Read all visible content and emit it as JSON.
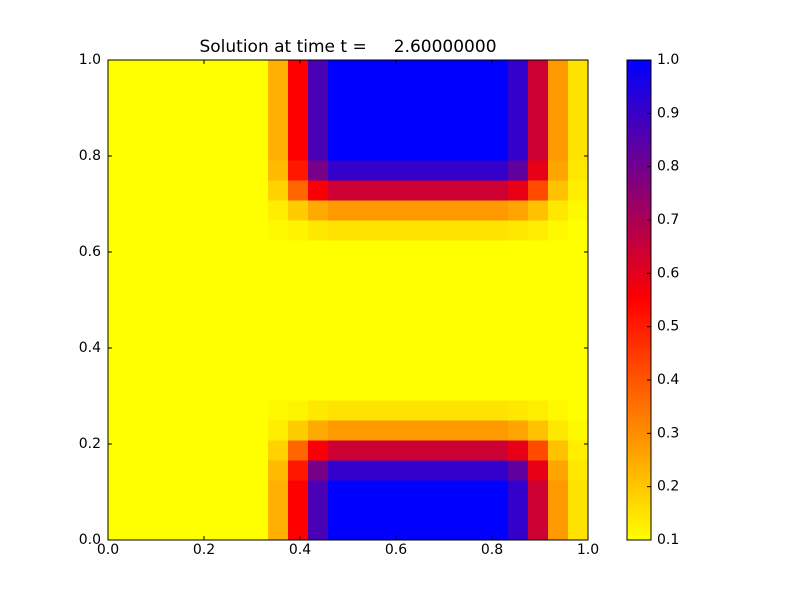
{
  "chart_data": {
    "type": "heatmap",
    "title": "Solution at time t =     2.60000000",
    "xlim": [
      0,
      1
    ],
    "ylim": [
      0,
      1
    ],
    "xticks": [
      {
        "value": 0,
        "label": "0.0"
      },
      0.2,
      0.4,
      0.6,
      0.8,
      {
        "value": 1,
        "label": "1.0"
      }
    ],
    "yticks": [
      {
        "value": 0,
        "label": "0.0"
      },
      0.2,
      0.4,
      0.6,
      0.8,
      {
        "value": 1,
        "label": "1.0"
      }
    ],
    "colormap": [
      "#ffff00",
      "#ff0000",
      "#0000ff"
    ],
    "vlim": [
      0.1,
      1.0
    ],
    "colorbar_ticks": [
      0.1,
      0.2,
      0.3,
      0.4,
      0.5,
      0.6,
      0.7,
      0.8,
      0.9,
      {
        "value": 1,
        "label": "1.0"
      }
    ],
    "z": [
      [
        0.1,
        0.1,
        0.1,
        0.1,
        0.1,
        0.1,
        0.1,
        0.1,
        0.24,
        0.55,
        0.87,
        1,
        1,
        1,
        1,
        1,
        1,
        1,
        1,
        1,
        0.91,
        0.64,
        0.28,
        0.15
      ],
      [
        0.1,
        0.1,
        0.1,
        0.1,
        0.1,
        0.1,
        0.1,
        0.1,
        0.24,
        0.55,
        0.87,
        1,
        1,
        1,
        1,
        1,
        1,
        1,
        1,
        1,
        0.91,
        0.64,
        0.28,
        0.15
      ],
      [
        0.1,
        0.1,
        0.1,
        0.1,
        0.1,
        0.1,
        0.1,
        0.1,
        0.24,
        0.55,
        0.87,
        1,
        1,
        1,
        1,
        1,
        1,
        1,
        1,
        1,
        0.91,
        0.64,
        0.28,
        0.15
      ],
      [
        0.1,
        0.1,
        0.1,
        0.1,
        0.1,
        0.1,
        0.1,
        0.1,
        0.22,
        0.51,
        0.79,
        0.91,
        0.91,
        0.91,
        0.91,
        0.91,
        0.91,
        0.91,
        0.91,
        0.91,
        0.83,
        0.59,
        0.26,
        0.14
      ],
      [
        0.1,
        0.1,
        0.1,
        0.1,
        0.1,
        0.1,
        0.1,
        0.1,
        0.18,
        0.37,
        0.56,
        0.64,
        0.64,
        0.64,
        0.64,
        0.64,
        0.64,
        0.64,
        0.64,
        0.64,
        0.59,
        0.42,
        0.21,
        0.13
      ],
      [
        0.1,
        0.1,
        0.1,
        0.1,
        0.1,
        0.1,
        0.1,
        0.1,
        0.13,
        0.19,
        0.25,
        0.28,
        0.28,
        0.28,
        0.28,
        0.28,
        0.28,
        0.28,
        0.28,
        0.28,
        0.26,
        0.21,
        0.14,
        0.11
      ],
      [
        0.1,
        0.1,
        0.1,
        0.1,
        0.1,
        0.1,
        0.1,
        0.1,
        0.11,
        0.12,
        0.14,
        0.15,
        0.15,
        0.15,
        0.15,
        0.15,
        0.15,
        0.15,
        0.15,
        0.15,
        0.14,
        0.13,
        0.11,
        0.1
      ],
      [
        0.1,
        0.1,
        0.1,
        0.1,
        0.1,
        0.1,
        0.1,
        0.1,
        0.1,
        0.1,
        0.1,
        0.1,
        0.1,
        0.1,
        0.1,
        0.1,
        0.1,
        0.1,
        0.1,
        0.1,
        0.1,
        0.1,
        0.1,
        0.1
      ],
      [
        0.1,
        0.1,
        0.1,
        0.1,
        0.1,
        0.1,
        0.1,
        0.1,
        0.1,
        0.1,
        0.1,
        0.1,
        0.1,
        0.1,
        0.1,
        0.1,
        0.1,
        0.1,
        0.1,
        0.1,
        0.1,
        0.1,
        0.1,
        0.1
      ],
      [
        0.1,
        0.1,
        0.1,
        0.1,
        0.1,
        0.1,
        0.1,
        0.1,
        0.1,
        0.1,
        0.1,
        0.1,
        0.1,
        0.1,
        0.1,
        0.1,
        0.1,
        0.1,
        0.1,
        0.1,
        0.1,
        0.1,
        0.1,
        0.1
      ],
      [
        0.1,
        0.1,
        0.1,
        0.1,
        0.1,
        0.1,
        0.1,
        0.1,
        0.1,
        0.1,
        0.1,
        0.1,
        0.1,
        0.1,
        0.1,
        0.1,
        0.1,
        0.1,
        0.1,
        0.1,
        0.1,
        0.1,
        0.1,
        0.1
      ],
      [
        0.1,
        0.1,
        0.1,
        0.1,
        0.1,
        0.1,
        0.1,
        0.1,
        0.1,
        0.1,
        0.1,
        0.1,
        0.1,
        0.1,
        0.1,
        0.1,
        0.1,
        0.1,
        0.1,
        0.1,
        0.1,
        0.1,
        0.1,
        0.1
      ],
      [
        0.1,
        0.1,
        0.1,
        0.1,
        0.1,
        0.1,
        0.1,
        0.1,
        0.1,
        0.1,
        0.1,
        0.1,
        0.1,
        0.1,
        0.1,
        0.1,
        0.1,
        0.1,
        0.1,
        0.1,
        0.1,
        0.1,
        0.1,
        0.1
      ],
      [
        0.1,
        0.1,
        0.1,
        0.1,
        0.1,
        0.1,
        0.1,
        0.1,
        0.1,
        0.1,
        0.1,
        0.1,
        0.1,
        0.1,
        0.1,
        0.1,
        0.1,
        0.1,
        0.1,
        0.1,
        0.1,
        0.1,
        0.1,
        0.1
      ],
      [
        0.1,
        0.1,
        0.1,
        0.1,
        0.1,
        0.1,
        0.1,
        0.1,
        0.1,
        0.1,
        0.1,
        0.1,
        0.1,
        0.1,
        0.1,
        0.1,
        0.1,
        0.1,
        0.1,
        0.1,
        0.1,
        0.1,
        0.1,
        0.1
      ],
      [
        0.1,
        0.1,
        0.1,
        0.1,
        0.1,
        0.1,
        0.1,
        0.1,
        0.11,
        0.12,
        0.14,
        0.15,
        0.15,
        0.15,
        0.15,
        0.15,
        0.15,
        0.15,
        0.15,
        0.15,
        0.14,
        0.13,
        0.11,
        0.1
      ],
      [
        0.1,
        0.1,
        0.1,
        0.1,
        0.1,
        0.1,
        0.1,
        0.1,
        0.13,
        0.19,
        0.25,
        0.28,
        0.28,
        0.28,
        0.28,
        0.28,
        0.28,
        0.28,
        0.28,
        0.28,
        0.26,
        0.21,
        0.14,
        0.11
      ],
      [
        0.1,
        0.1,
        0.1,
        0.1,
        0.1,
        0.1,
        0.1,
        0.1,
        0.18,
        0.37,
        0.56,
        0.64,
        0.64,
        0.64,
        0.64,
        0.64,
        0.64,
        0.64,
        0.64,
        0.64,
        0.59,
        0.42,
        0.21,
        0.13
      ],
      [
        0.1,
        0.1,
        0.1,
        0.1,
        0.1,
        0.1,
        0.1,
        0.1,
        0.22,
        0.51,
        0.79,
        0.91,
        0.91,
        0.91,
        0.91,
        0.91,
        0.91,
        0.91,
        0.91,
        0.91,
        0.83,
        0.59,
        0.26,
        0.14
      ],
      [
        0.1,
        0.1,
        0.1,
        0.1,
        0.1,
        0.1,
        0.1,
        0.1,
        0.24,
        0.55,
        0.87,
        1,
        1,
        1,
        1,
        1,
        1,
        1,
        1,
        1,
        0.91,
        0.64,
        0.28,
        0.15
      ],
      [
        0.1,
        0.1,
        0.1,
        0.1,
        0.1,
        0.1,
        0.1,
        0.1,
        0.24,
        0.55,
        0.87,
        1,
        1,
        1,
        1,
        1,
        1,
        1,
        1,
        1,
        0.91,
        0.64,
        0.28,
        0.15
      ],
      [
        0.1,
        0.1,
        0.1,
        0.1,
        0.1,
        0.1,
        0.1,
        0.1,
        0.24,
        0.55,
        0.87,
        1,
        1,
        1,
        1,
        1,
        1,
        1,
        1,
        1,
        0.91,
        0.64,
        0.28,
        0.15
      ],
      [
        0.1,
        0.1,
        0.1,
        0.1,
        0.1,
        0.1,
        0.1,
        0.1,
        0.24,
        0.55,
        0.87,
        1,
        1,
        1,
        1,
        1,
        1,
        1,
        1,
        1,
        0.91,
        0.64,
        0.28,
        0.15
      ],
      [
        0.1,
        0.1,
        0.1,
        0.1,
        0.1,
        0.1,
        0.1,
        0.1,
        0.24,
        0.55,
        0.87,
        1,
        1,
        1,
        1,
        1,
        1,
        1,
        1,
        1,
        0.91,
        0.64,
        0.28,
        0.15
      ]
    ]
  }
}
